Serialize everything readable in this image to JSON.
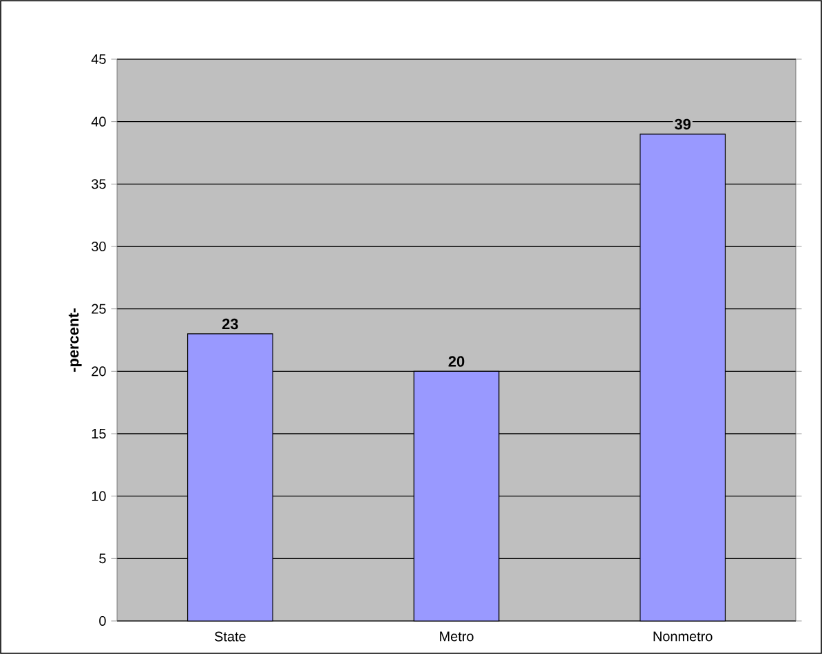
{
  "chart_data": {
    "type": "bar",
    "ylabel": "-percent-",
    "categories": [
      "State",
      "Metro",
      "Nonmetro"
    ],
    "values": [
      23,
      20,
      39
    ],
    "color": "#9999ff",
    "ylim": [
      0,
      45
    ],
    "yticks": [
      0,
      5,
      10,
      15,
      20,
      25,
      30,
      35,
      40,
      45
    ],
    "grid": "y",
    "data_labels": true,
    "legend": false
  }
}
